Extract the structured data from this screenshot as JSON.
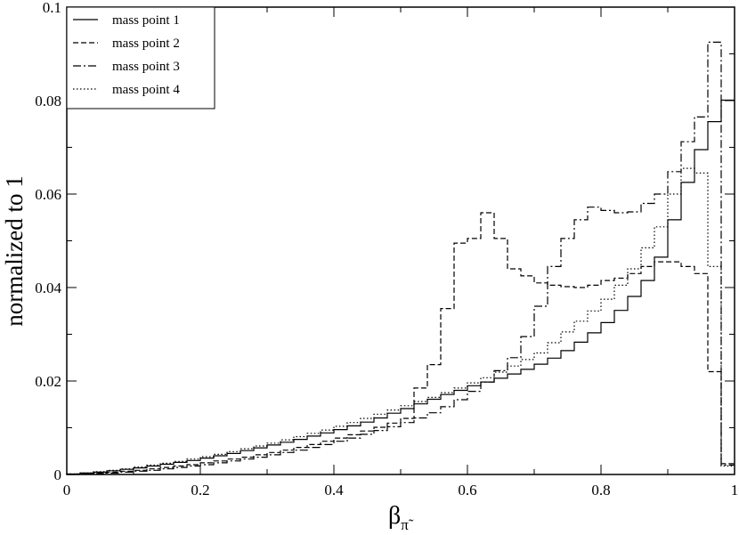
{
  "chart_data": {
    "type": "line",
    "style": "step-histogram",
    "xlabel": {
      "symbol": "β",
      "subscript": "π̃"
    },
    "ylabel": "normalized to 1",
    "xlim": [
      0,
      1
    ],
    "ylim": [
      0,
      0.1
    ],
    "x_ticks": [
      0,
      0.2,
      0.4,
      0.6,
      0.8,
      1
    ],
    "x_tick_labels": [
      "0",
      "0.2",
      "0.4",
      "0.6",
      "0.8",
      "1"
    ],
    "y_ticks": [
      0,
      0.02,
      0.04,
      0.06,
      0.08,
      0.1
    ],
    "y_tick_labels": [
      "0",
      "0.02",
      "0.04",
      "0.06",
      "0.08",
      "0.1"
    ],
    "grid": false,
    "legend_position": "top-left",
    "bin_edges": [
      0.02,
      0.04,
      0.06,
      0.08,
      0.1,
      0.12,
      0.14,
      0.16,
      0.18,
      0.2,
      0.22,
      0.24,
      0.26,
      0.28,
      0.3,
      0.32,
      0.34,
      0.36,
      0.38,
      0.4,
      0.42,
      0.44,
      0.46,
      0.48,
      0.5,
      0.52,
      0.54,
      0.56,
      0.58,
      0.6,
      0.62,
      0.64,
      0.66,
      0.68,
      0.7,
      0.72,
      0.74,
      0.76,
      0.78,
      0.8,
      0.82,
      0.84,
      0.86,
      0.88,
      0.9,
      0.92,
      0.94,
      0.96,
      0.98,
      1.0
    ],
    "series": [
      {
        "name": "mass point 1",
        "dash": "solid",
        "values": [
          0.0001,
          0.0003,
          0.0005,
          0.0008,
          0.0011,
          0.0014,
          0.0018,
          0.0022,
          0.0026,
          0.003,
          0.0035,
          0.004,
          0.0045,
          0.0051,
          0.0057,
          0.0063,
          0.0069,
          0.0075,
          0.0082,
          0.0089,
          0.0096,
          0.0104,
          0.0112,
          0.0121,
          0.0131,
          0.0141,
          0.0151,
          0.0161,
          0.0171,
          0.018,
          0.019,
          0.0198,
          0.0206,
          0.0215,
          0.0225,
          0.0236,
          0.0249,
          0.0265,
          0.0283,
          0.0303,
          0.0325,
          0.0351,
          0.0381,
          0.0415,
          0.0465,
          0.0545,
          0.0625,
          0.0695,
          0.0755,
          0.0801
        ]
      },
      {
        "name": "mass point 2",
        "dash": "dashed",
        "values": [
          0.0001,
          0.0002,
          0.0003,
          0.0005,
          0.0007,
          0.0009,
          0.0012,
          0.0015,
          0.0018,
          0.0021,
          0.0025,
          0.0029,
          0.0033,
          0.0037,
          0.0042,
          0.0047,
          0.0052,
          0.0058,
          0.0064,
          0.0071,
          0.0078,
          0.0085,
          0.0093,
          0.0101,
          0.011,
          0.012,
          0.0185,
          0.0235,
          0.0355,
          0.0495,
          0.0505,
          0.056,
          0.0505,
          0.044,
          0.0425,
          0.041,
          0.0405,
          0.0402,
          0.04,
          0.0405,
          0.0415,
          0.042,
          0.043,
          0.0445,
          0.0455,
          0.0455,
          0.0445,
          0.043,
          0.022,
          0.0023
        ]
      },
      {
        "name": "mass point 3",
        "dash": "dashdot",
        "values": [
          0.0,
          0.0001,
          0.0002,
          0.0003,
          0.0005,
          0.0007,
          0.0009,
          0.0012,
          0.0015,
          0.0018,
          0.0021,
          0.0025,
          0.0029,
          0.0033,
          0.0037,
          0.0042,
          0.0047,
          0.0052,
          0.0058,
          0.0064,
          0.0071,
          0.0078,
          0.0086,
          0.0094,
          0.0102,
          0.0111,
          0.0121,
          0.0132,
          0.0145,
          0.016,
          0.0178,
          0.0198,
          0.0222,
          0.025,
          0.0295,
          0.036,
          0.0445,
          0.0505,
          0.0545,
          0.0572,
          0.0565,
          0.056,
          0.0562,
          0.058,
          0.06,
          0.0648,
          0.0712,
          0.0765,
          0.0925,
          0.002
        ]
      },
      {
        "name": "mass point 4",
        "dash": "dotted",
        "values": [
          0.0001,
          0.0003,
          0.0006,
          0.0009,
          0.0012,
          0.0016,
          0.002,
          0.0024,
          0.0028,
          0.0033,
          0.0038,
          0.0043,
          0.0049,
          0.0055,
          0.0061,
          0.0067,
          0.0074,
          0.0081,
          0.0088,
          0.0095,
          0.0103,
          0.0111,
          0.012,
          0.0129,
          0.0138,
          0.0147,
          0.0156,
          0.0165,
          0.0175,
          0.0185,
          0.0196,
          0.0207,
          0.0219,
          0.0232,
          0.0246,
          0.026,
          0.0282,
          0.0305,
          0.0328,
          0.035,
          0.0375,
          0.0405,
          0.044,
          0.0485,
          0.053,
          0.06,
          0.0655,
          0.0645,
          0.0445,
          0.0018
        ]
      }
    ]
  }
}
